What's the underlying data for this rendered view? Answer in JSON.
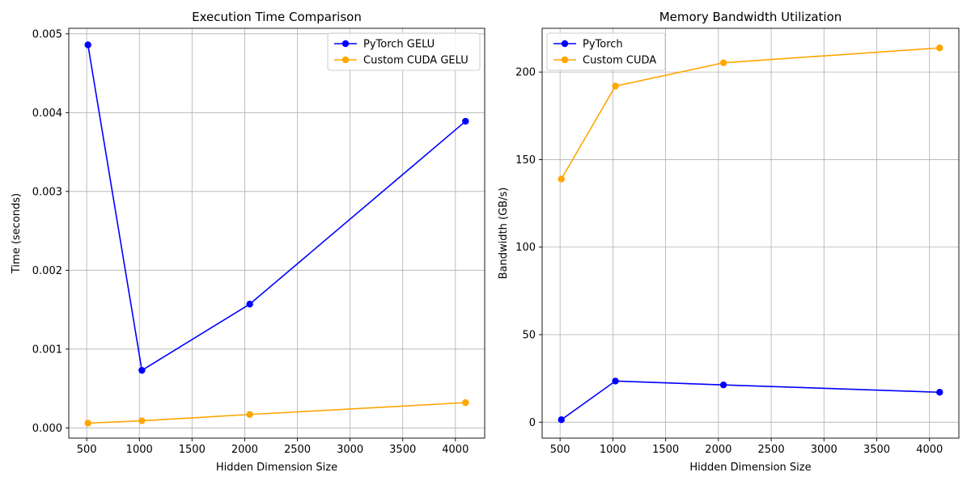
{
  "chart_data": [
    {
      "type": "line",
      "title": "Execution Time Comparison",
      "xlabel": "Hidden Dimension Size",
      "ylabel": "Time (seconds)",
      "x": [
        512,
        1024,
        2048,
        4096
      ],
      "xlim": [
        330,
        4278
      ],
      "ylim": [
        -0.00013,
        0.00507
      ],
      "xticks": [
        500,
        1000,
        1500,
        2000,
        2500,
        3000,
        3500,
        4000
      ],
      "xtick_labels": [
        "500",
        "1000",
        "1500",
        "2000",
        "2500",
        "3000",
        "3500",
        "4000"
      ],
      "yticks": [
        0,
        0.001,
        0.002,
        0.003,
        0.004,
        0.005
      ],
      "ytick_labels": [
        "0.000",
        "0.001",
        "0.002",
        "0.003",
        "0.004",
        "0.005"
      ],
      "grid": true,
      "legend_position": "top-right",
      "series": [
        {
          "name": "PyTorch GELU",
          "color": "#0000ff",
          "values": [
            0.00486,
            0.00073,
            0.00157,
            0.00389
          ]
        },
        {
          "name": "Custom CUDA GELU",
          "color": "#ffa500",
          "values": [
            6e-05,
            9e-05,
            0.00017,
            0.00032
          ]
        }
      ]
    },
    {
      "type": "line",
      "title": "Memory Bandwidth Utilization",
      "xlabel": "Hidden Dimension Size",
      "ylabel": "Bandwidth (GB/s)",
      "x": [
        512,
        1024,
        2048,
        4096
      ],
      "xlim": [
        330,
        4278
      ],
      "ylim": [
        -9.1,
        225
      ],
      "xticks": [
        500,
        1000,
        1500,
        2000,
        2500,
        3000,
        3500,
        4000
      ],
      "xtick_labels": [
        "500",
        "1000",
        "1500",
        "2000",
        "2500",
        "3000",
        "3500",
        "4000"
      ],
      "yticks": [
        0,
        50,
        100,
        150,
        200
      ],
      "ytick_labels": [
        "0",
        "50",
        "100",
        "150",
        "200"
      ],
      "grid": true,
      "legend_position": "top-left",
      "series": [
        {
          "name": "PyTorch",
          "color": "#0000ff",
          "values": [
            1.4,
            23.5,
            21.3,
            17.1
          ]
        },
        {
          "name": "Custom CUDA",
          "color": "#ffa500",
          "values": [
            138.9,
            192.0,
            205.3,
            213.8
          ]
        }
      ]
    }
  ]
}
